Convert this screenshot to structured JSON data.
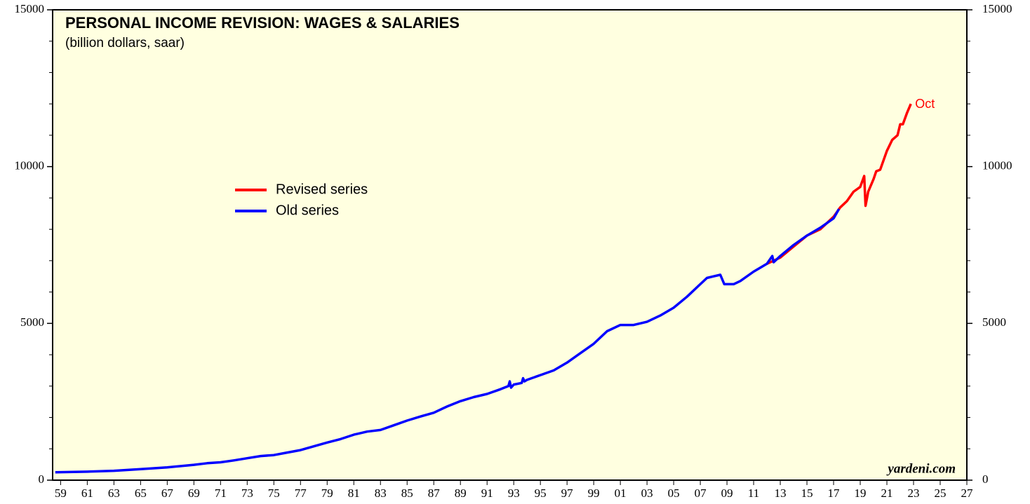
{
  "chart_data": {
    "type": "line",
    "title": "PERSONAL INCOME REVISION: WAGES & SALARIES",
    "subtitle": "(billion dollars, saar)",
    "annotation": "Oct",
    "source": "yardeni.com",
    "xlim": [
      1958.4,
      2027
    ],
    "xticks": [
      {
        "value": 1959,
        "label": "59"
      },
      {
        "value": 1961,
        "label": "61"
      },
      {
        "value": 1963,
        "label": "63"
      },
      {
        "value": 1965,
        "label": "65"
      },
      {
        "value": 1967,
        "label": "67"
      },
      {
        "value": 1969,
        "label": "69"
      },
      {
        "value": 1971,
        "label": "71"
      },
      {
        "value": 1973,
        "label": "73"
      },
      {
        "value": 1975,
        "label": "75"
      },
      {
        "value": 1977,
        "label": "77"
      },
      {
        "value": 1979,
        "label": "79"
      },
      {
        "value": 1981,
        "label": "81"
      },
      {
        "value": 1983,
        "label": "83"
      },
      {
        "value": 1985,
        "label": "85"
      },
      {
        "value": 1987,
        "label": "87"
      },
      {
        "value": 1989,
        "label": "89"
      },
      {
        "value": 1991,
        "label": "91"
      },
      {
        "value": 1993,
        "label": "93"
      },
      {
        "value": 1995,
        "label": "95"
      },
      {
        "value": 1997,
        "label": "97"
      },
      {
        "value": 1999,
        "label": "99"
      },
      {
        "value": 2001,
        "label": "01"
      },
      {
        "value": 2003,
        "label": "03"
      },
      {
        "value": 2005,
        "label": "05"
      },
      {
        "value": 2007,
        "label": "07"
      },
      {
        "value": 2009,
        "label": "09"
      },
      {
        "value": 2011,
        "label": "11"
      },
      {
        "value": 2013,
        "label": "13"
      },
      {
        "value": 2015,
        "label": "15"
      },
      {
        "value": 2017,
        "label": "17"
      },
      {
        "value": 2019,
        "label": "19"
      },
      {
        "value": 2021,
        "label": "21"
      },
      {
        "value": 2023,
        "label": "23"
      },
      {
        "value": 2025,
        "label": "25"
      },
      {
        "value": 2027,
        "label": "27"
      }
    ],
    "ylim": [
      0,
      15000
    ],
    "yticks": [
      0,
      5000,
      10000,
      15000
    ],
    "yminorticks": [
      1000,
      2000,
      3000,
      4000,
      6000,
      7000,
      8000,
      9000,
      11000,
      12000,
      13000,
      14000
    ],
    "series": [
      {
        "name": "Revised series",
        "color": "#ff0000",
        "x": [
          2012,
          2013,
          2014,
          2015,
          2016,
          2017,
          2017.5,
          2018,
          2018.5,
          2019,
          2019.3,
          2019.4,
          2019.6,
          2020,
          2020.2,
          2020.5,
          2021,
          2021.4,
          2021.8,
          2022,
          2022.2,
          2022.5,
          2022.8
        ],
        "values": [
          6900,
          7100,
          7450,
          7800,
          8000,
          8400,
          8700,
          8900,
          9200,
          9350,
          9700,
          8750,
          9200,
          9600,
          9850,
          9900,
          10500,
          10850,
          11000,
          11350,
          11350,
          11700,
          12000
        ]
      },
      {
        "name": "Old series",
        "color": "#0000ff",
        "x": [
          1958.6,
          1961,
          1963,
          1965,
          1967,
          1969,
          1970,
          1971,
          1972,
          1973,
          1974,
          1975,
          1976,
          1977,
          1978,
          1979,
          1980,
          1981,
          1982,
          1983,
          1984,
          1985,
          1986,
          1987,
          1988,
          1989,
          1990,
          1991,
          1992,
          1992.6,
          1992.7,
          1992.8,
          1993,
          1993.6,
          1993.7,
          1993.8,
          1994,
          1995,
          1996,
          1997,
          1998,
          1999,
          2000,
          2001,
          2002,
          2003,
          2004,
          2005,
          2006,
          2007,
          2007.5,
          2008,
          2008.5,
          2008.8,
          2009.5,
          2010,
          2011,
          2012,
          2012.4,
          2012.5,
          2013,
          2014,
          2015,
          2016,
          2017,
          2017.4
        ],
        "values": [
          250,
          270,
          300,
          350,
          410,
          490,
          540,
          570,
          630,
          700,
          770,
          800,
          880,
          960,
          1080,
          1200,
          1310,
          1450,
          1550,
          1600,
          1750,
          1900,
          2030,
          2150,
          2350,
          2520,
          2650,
          2750,
          2900,
          3000,
          3150,
          2950,
          3050,
          3100,
          3250,
          3150,
          3200,
          3350,
          3500,
          3750,
          4050,
          4350,
          4750,
          4950,
          4950,
          5050,
          5250,
          5500,
          5850,
          6250,
          6450,
          6500,
          6550,
          6250,
          6250,
          6350,
          6650,
          6900,
          7150,
          6950,
          7150,
          7500,
          7800,
          8050,
          8350,
          8650
        ]
      }
    ]
  }
}
